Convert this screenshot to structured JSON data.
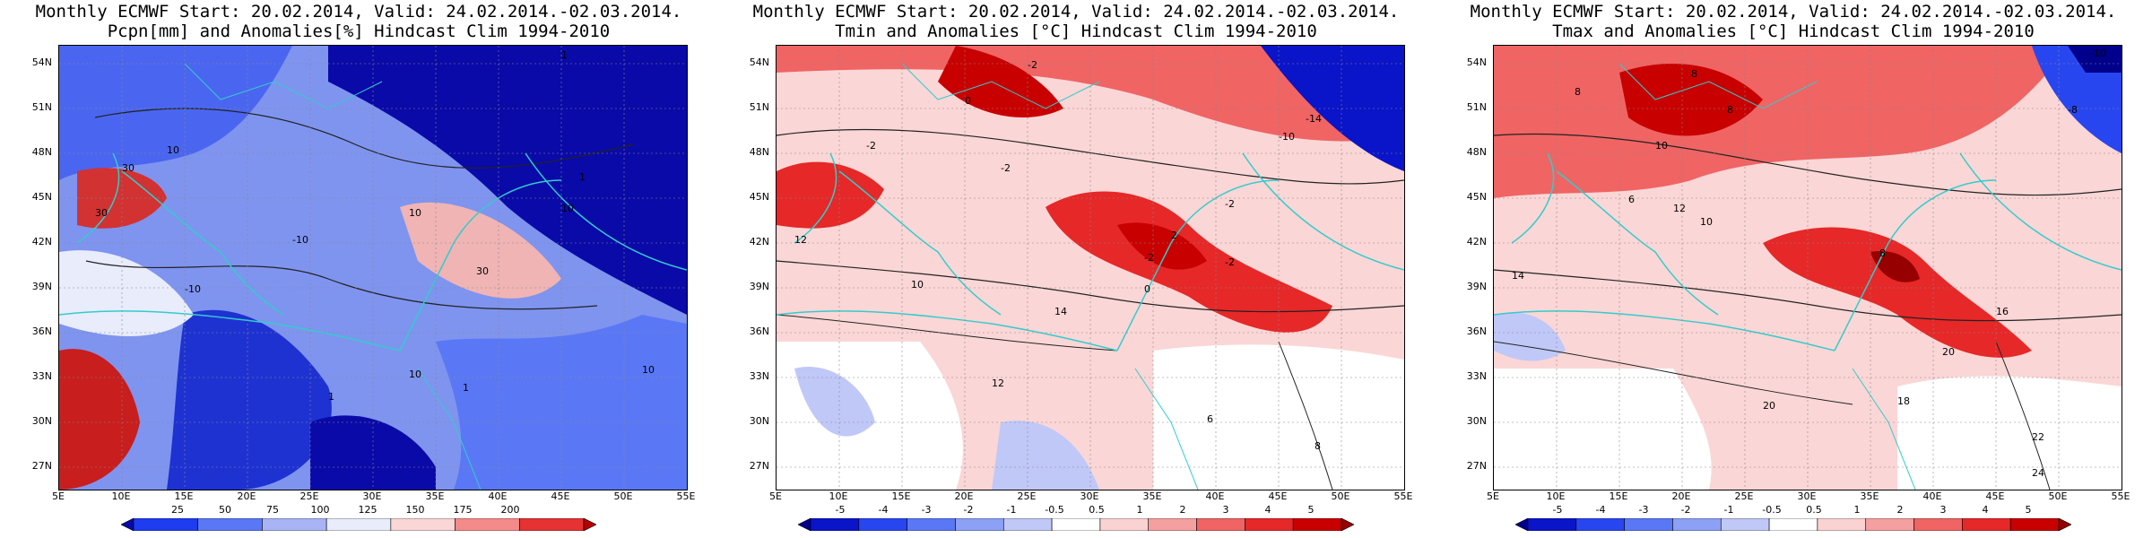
{
  "panels": [
    {
      "id": "pcpn",
      "title_line1": "Monthly ECMWF Start: 20.02.2014, Valid: 24.02.2014.-02.03.2014.",
      "title_line2": "Pcpn[mm] and Anomalies[%] Hindcast Clim 1994-2010",
      "colorbar_labels": [
        "25",
        "50",
        "75",
        "100",
        "125",
        "150",
        "175",
        "200"
      ],
      "colorbar_colors": [
        "#0a0aa8",
        "#1e3cf0",
        "#5a78f5",
        "#a8b4f5",
        "#e8ecfb",
        "#fbd6d6",
        "#f58a8a",
        "#e63232",
        "#b40000"
      ]
    },
    {
      "id": "tmin",
      "title_line1": "Monthly ECMWF Start: 20.02.2014, Valid: 24.02.2014.-02.03.2014.",
      "title_line2": "Tmin and Anomalies [°C] Hindcast Clim 1994-2010",
      "colorbar_labels": [
        "-5",
        "-4",
        "-3",
        "-2",
        "-1",
        "-0.5",
        "0.5",
        "1",
        "2",
        "3",
        "4",
        "5"
      ],
      "colorbar_colors": [
        "#00008c",
        "#0a14c8",
        "#2846f0",
        "#5a78f5",
        "#8ca0f5",
        "#c0c8f8",
        "#ffffff",
        "#fbd2d2",
        "#f5a0a0",
        "#f06464",
        "#e62828",
        "#c80000",
        "#960000"
      ]
    },
    {
      "id": "tmax",
      "title_line1": "Monthly ECMWF Start: 20.02.2014, Valid: 24.02.2014.-02.03.2014.",
      "title_line2": "Tmax and Anomalies [°C] Hindcast Clim 1994-2010",
      "colorbar_labels": [
        "-5",
        "-4",
        "-3",
        "-2",
        "-1",
        "-0.5",
        "0.5",
        "1",
        "2",
        "3",
        "4",
        "5"
      ],
      "colorbar_colors": [
        "#00008c",
        "#0a14c8",
        "#2846f0",
        "#5a78f5",
        "#8ca0f5",
        "#c0c8f8",
        "#ffffff",
        "#fbd2d2",
        "#f5a0a0",
        "#f06464",
        "#e62828",
        "#c80000",
        "#960000"
      ]
    }
  ],
  "lat_labels": [
    "54N",
    "51N",
    "48N",
    "45N",
    "42N",
    "39N",
    "36N",
    "33N",
    "30N",
    "27N"
  ],
  "lon_labels": [
    "5E",
    "10E",
    "15E",
    "20E",
    "25E",
    "30E",
    "35E",
    "40E",
    "45E",
    "50E",
    "55E"
  ],
  "map_labels": {
    "pcpn": [
      "1",
      "10",
      "30",
      "30",
      "-10",
      "10",
      "10",
      "30",
      "10",
      "1",
      "-10",
      "1",
      "10",
      "1"
    ],
    "tmin": [
      "-2",
      "0",
      "-2",
      "-14",
      "-10",
      "-2",
      "-2",
      "-2",
      "0",
      "2",
      "-2",
      "12",
      "10",
      "14",
      "12",
      "8",
      "6"
    ],
    "tmax": [
      "-10",
      "8",
      "8",
      "8",
      "-8",
      "10",
      "6",
      "12",
      "10",
      "8",
      "14",
      "16",
      "20",
      "18",
      "20",
      "22",
      "24"
    ]
  },
  "colors": {
    "coast": "#33cccc",
    "contour": "#222222"
  }
}
